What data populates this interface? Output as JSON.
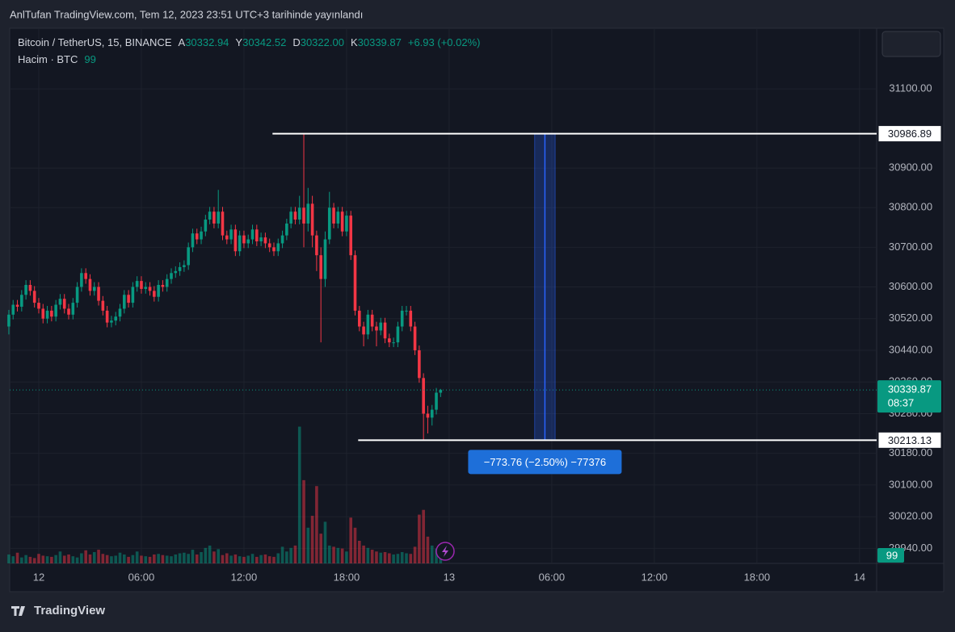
{
  "page": {
    "watermark": "AnlTufan TradingView.com, Tem 12, 2023 23:51 UTC+3 tarihinde yayınlandı",
    "brand": "TradingView"
  },
  "chart_data": {
    "type": "candlestick",
    "legend": {
      "symbol": "Bitcoin / TetherUS, 15, BINANCE",
      "ohlc": [
        {
          "key": "A",
          "value": "30332.94"
        },
        {
          "key": "Y",
          "value": "30342.52"
        },
        {
          "key": "D",
          "value": "30322.00"
        },
        {
          "key": "K",
          "value": "30339.87"
        }
      ],
      "change": "+6.93 (+0.02%)",
      "volume_title": "Hacim · BTC"
    },
    "up_color": "#089981",
    "down_color": "#f23645",
    "x": [
      -1.75,
      -1.5,
      -1.25,
      -1,
      -0.75,
      -0.5,
      -0.25,
      0,
      0.25,
      0.5,
      0.75,
      1,
      1.25,
      1.5,
      1.75,
      2,
      2.25,
      2.5,
      2.75,
      3,
      3.25,
      3.5,
      3.75,
      4,
      4.25,
      4.5,
      4.75,
      5,
      5.25,
      5.5,
      5.75,
      6,
      6.25,
      6.5,
      6.75,
      7,
      7.25,
      7.5,
      7.75,
      8,
      8.25,
      8.5,
      8.75,
      9,
      9.25,
      9.5,
      9.75,
      10,
      10.25,
      10.5,
      10.75,
      11,
      11.25,
      11.5,
      11.75,
      12,
      12.25,
      12.5,
      12.75,
      13,
      13.25,
      13.5,
      13.75,
      14,
      14.25,
      14.5,
      14.75,
      15,
      15.25,
      15.5,
      15.75,
      16,
      16.25,
      16.5,
      16.75,
      17,
      17.25,
      17.5,
      17.75,
      18,
      18.25,
      18.5,
      18.75,
      19,
      19.25,
      19.5,
      19.75,
      20,
      20.25,
      20.5,
      20.75,
      21,
      21.25,
      21.5,
      21.75,
      22,
      22.25,
      22.5,
      22.75,
      23,
      23.25,
      23.5
    ],
    "open": [
      30500,
      30530,
      30555,
      30550,
      30580,
      30605,
      30590,
      30560,
      30545,
      30520,
      30540,
      30525,
      30555,
      30570,
      30545,
      30530,
      30560,
      30600,
      30635,
      30620,
      30590,
      30600,
      30565,
      30540,
      30510,
      30515,
      30525,
      30545,
      30580,
      30560,
      30600,
      30615,
      30595,
      30600,
      30590,
      30575,
      30605,
      30600,
      30620,
      30635,
      30640,
      30650,
      30655,
      30700,
      30735,
      30720,
      30740,
      30770,
      30790,
      30760,
      30790,
      30730,
      30720,
      30745,
      30690,
      30730,
      30710,
      30720,
      30745,
      30715,
      30725,
      30710,
      30700,
      30690,
      30710,
      30730,
      30760,
      30790,
      30770,
      30800,
      30760,
      30810,
      30730,
      30680,
      30620,
      30720,
      30800,
      30760,
      30790,
      30740,
      30780,
      30680,
      30540,
      30500,
      30480,
      30530,
      30500,
      30490,
      30510,
      30470,
      30460,
      30460,
      30500,
      30540,
      30540,
      30500,
      30440,
      30370,
      30280,
      30270,
      30290,
      30332.94
    ],
    "high": [
      30542,
      30567,
      30567,
      30592,
      30617,
      30617,
      30602,
      30572,
      30557,
      30552,
      30552,
      30567,
      30582,
      30582,
      30557,
      30572,
      30612,
      30647,
      30647,
      30632,
      30612,
      30612,
      30577,
      30552,
      30527,
      30537,
      30557,
      30592,
      30592,
      30612,
      30627,
      30627,
      30612,
      30612,
      30602,
      30617,
      30617,
      30632,
      30647,
      30652,
      30662,
      30667,
      30712,
      30747,
      30747,
      30752,
      30782,
      30802,
      30802,
      30845,
      30802,
      30742,
      30757,
      30757,
      30742,
      30742,
      30732,
      30757,
      30757,
      30737,
      30737,
      30722,
      30712,
      30722,
      30742,
      30772,
      30802,
      30802,
      30830,
      30986.89,
      30850,
      30830,
      30742,
      30700,
      30740,
      30840,
      30812,
      30802,
      30802,
      30792,
      30792,
      30692,
      30552,
      30512,
      30542,
      30542,
      30512,
      30522,
      30522,
      30482,
      30472,
      30512,
      30552,
      30552,
      30552,
      30512,
      30452,
      30382,
      30300,
      30302,
      30345,
      30342.52
    ],
    "low": [
      30480,
      30518,
      30538,
      30538,
      30568,
      30578,
      30548,
      30533,
      30508,
      30508,
      30513,
      30513,
      30543,
      30533,
      30518,
      30518,
      30548,
      30588,
      30608,
      30578,
      30578,
      30553,
      30528,
      30498,
      30498,
      30503,
      30513,
      30533,
      30548,
      30548,
      30588,
      30583,
      30583,
      30578,
      30563,
      30563,
      30588,
      30588,
      30608,
      30623,
      30628,
      30638,
      30643,
      30688,
      30708,
      30708,
      30728,
      30758,
      30748,
      30748,
      30718,
      30708,
      30708,
      30678,
      30678,
      30698,
      30698,
      30708,
      30703,
      30703,
      30698,
      30688,
      30678,
      30678,
      30698,
      30718,
      30748,
      30758,
      30758,
      30700,
      30740,
      30700,
      30640,
      30460,
      30600,
      30708,
      30748,
      30748,
      30728,
      30728,
      30668,
      30528,
      30488,
      30450,
      30468,
      30488,
      30450,
      30478,
      30458,
      30448,
      30448,
      30448,
      30488,
      30528,
      30488,
      30428,
      30358,
      30213.13,
      30230,
      30250,
      30278,
      30322.0
    ],
    "close": [
      30530,
      30555,
      30550,
      30580,
      30605,
      30590,
      30560,
      30545,
      30520,
      30540,
      30525,
      30555,
      30570,
      30545,
      30530,
      30560,
      30600,
      30635,
      30620,
      30590,
      30600,
      30565,
      30540,
      30510,
      30515,
      30525,
      30545,
      30580,
      30560,
      30600,
      30615,
      30595,
      30600,
      30590,
      30575,
      30605,
      30600,
      30620,
      30635,
      30640,
      30650,
      30655,
      30700,
      30735,
      30720,
      30740,
      30770,
      30790,
      30760,
      30790,
      30730,
      30720,
      30745,
      30690,
      30730,
      30710,
      30720,
      30745,
      30715,
      30725,
      30710,
      30700,
      30690,
      30710,
      30730,
      30760,
      30790,
      30770,
      30800,
      30760,
      30810,
      30730,
      30680,
      30620,
      30720,
      30800,
      30760,
      30790,
      30740,
      30780,
      30680,
      30540,
      30500,
      30480,
      30530,
      30500,
      30490,
      30510,
      30470,
      30460,
      30460,
      30500,
      30540,
      30540,
      30500,
      30440,
      30370,
      30280,
      30270,
      30290,
      30332.94,
      30339.87
    ],
    "volume": {
      "axis": "y2",
      "values": [
        150,
        120,
        180,
        100,
        140,
        110,
        90,
        160,
        130,
        120,
        110,
        140,
        200,
        130,
        150,
        120,
        100,
        170,
        220,
        150,
        190,
        230,
        160,
        140,
        120,
        130,
        180,
        150,
        110,
        140,
        200,
        130,
        120,
        110,
        150,
        160,
        140,
        130,
        120,
        150,
        170,
        180,
        160,
        230,
        150,
        190,
        260,
        300,
        200,
        240,
        140,
        170,
        130,
        150,
        120,
        110,
        130,
        160,
        110,
        140,
        150,
        120,
        110,
        170,
        280,
        200,
        260,
        300,
        2300,
        1400,
        600,
        800,
        1300,
        500,
        700,
        300,
        280,
        260,
        250,
        200,
        770,
        600,
        380,
        300,
        260,
        230,
        200,
        180,
        190,
        170,
        150,
        160,
        190,
        170,
        160,
        280,
        820,
        900,
        450,
        300,
        250,
        99
      ]
    },
    "y2lim": [
      0,
      9000
    ],
    "xlim": [
      -1.7,
      49
    ],
    "xticks": [
      {
        "value": 0,
        "label": "12"
      },
      {
        "value": 6,
        "label": "06:00"
      },
      {
        "value": 12,
        "label": "12:00"
      },
      {
        "value": 18,
        "label": "18:00"
      },
      {
        "value": 24,
        "label": "13"
      },
      {
        "value": 30,
        "label": "06:00"
      },
      {
        "value": 36,
        "label": "12:00"
      },
      {
        "value": 42,
        "label": "18:00"
      },
      {
        "value": 48,
        "label": "14"
      }
    ],
    "ylim": [
      29902,
      31253
    ],
    "yticks": [
      {
        "value": 31100,
        "label": "31100.00"
      },
      {
        "value": 30900,
        "label": "30900.00"
      },
      {
        "value": 30800,
        "label": "30800.00"
      },
      {
        "value": 30700,
        "label": "30700.00"
      },
      {
        "value": 30600,
        "label": "30600.00"
      },
      {
        "value": 30520,
        "label": "30520.00"
      },
      {
        "value": 30440,
        "label": "30440.00"
      },
      {
        "value": 30360,
        "label": "30360.00"
      },
      {
        "value": 30280,
        "label": "30280.00"
      },
      {
        "value": 30180,
        "label": "30180.00"
      },
      {
        "value": 30100,
        "label": "30100.00"
      },
      {
        "value": 30020,
        "label": "30020.00"
      },
      {
        "value": 29940,
        "label": "29940.00"
      }
    ],
    "hlines": [
      {
        "price": 30986.89,
        "start": 13.67
      },
      {
        "price": 30213.13,
        "start": 18.68
      }
    ],
    "measure": {
      "start": 29.0,
      "end": 30.2,
      "label": "−773.76 (−2.50%) −77376"
    },
    "countdown": "08:37"
  }
}
